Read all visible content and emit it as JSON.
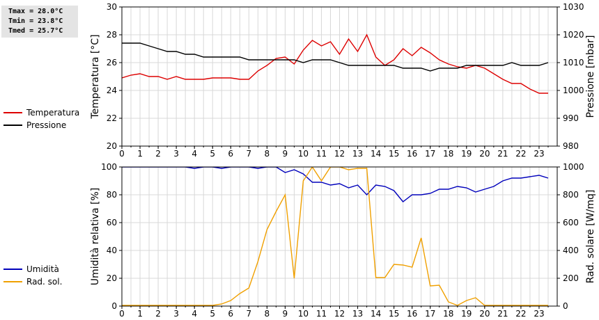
{
  "stats": {
    "tmax": "Tmax = 28.0°C",
    "tmin": "Tmin = 23.8°C",
    "tmed": "Tmed = 25.7°C"
  },
  "colors": {
    "temperatura": "#dd0000",
    "pressione": "#000000",
    "umidita": "#0000bb",
    "rad_sol": "#f0a000",
    "grid": "#d8d8d8"
  },
  "chart_data": [
    {
      "type": "line",
      "x_label": "",
      "x_ticks": [
        "0",
        "1",
        "2",
        "3",
        "4",
        "5",
        "6",
        "7",
        "8",
        "9",
        "10",
        "11",
        "12",
        "13",
        "14",
        "15",
        "16",
        "17",
        "18",
        "19",
        "20",
        "21",
        "22",
        "23"
      ],
      "y_left": {
        "label": "Temperatura [°C]",
        "range": [
          20,
          30
        ],
        "ticks": [
          "20",
          "22",
          "24",
          "26",
          "28",
          "30"
        ]
      },
      "y_right": {
        "label": "Pressione [mbar]",
        "range": [
          980,
          1030
        ],
        "ticks": [
          "980",
          "990",
          "1000",
          "1010",
          "1020",
          "1030"
        ]
      },
      "grid": true,
      "legend": [
        {
          "name": "Temperatura",
          "color": "#dd0000"
        },
        {
          "name": "Pressione",
          "color": "#000000"
        }
      ],
      "series": [
        {
          "name": "Temperatura",
          "axis": "left",
          "color": "#dd0000",
          "x": [
            0,
            0.5,
            1,
            1.5,
            2,
            2.5,
            3,
            3.5,
            4,
            4.5,
            5,
            5.5,
            6,
            6.5,
            7,
            7.5,
            8,
            8.5,
            9,
            9.5,
            10,
            10.5,
            11,
            11.5,
            12,
            12.5,
            13,
            13.5,
            14,
            14.5,
            15,
            15.5,
            16,
            16.5,
            17,
            17.5,
            18,
            18.5,
            19,
            19.5,
            20,
            20.5,
            21,
            21.5,
            22,
            22.5,
            23,
            23.5
          ],
          "values": [
            24.9,
            25.1,
            25.2,
            25.0,
            25.0,
            24.8,
            25.0,
            24.8,
            24.8,
            24.8,
            24.9,
            24.9,
            24.9,
            24.8,
            24.8,
            25.4,
            25.8,
            26.3,
            26.4,
            25.9,
            26.9,
            27.6,
            27.2,
            27.5,
            26.6,
            27.7,
            26.8,
            28.0,
            26.4,
            25.8,
            26.2,
            27.0,
            26.5,
            27.1,
            26.7,
            26.2,
            25.9,
            25.7,
            25.6,
            25.8,
            25.6,
            25.2,
            24.8,
            24.5,
            24.5,
            24.1,
            23.8,
            23.8
          ]
        },
        {
          "name": "Pressione",
          "axis": "right",
          "color": "#000000",
          "x": [
            0,
            1,
            1.5,
            2,
            2.5,
            3,
            3.5,
            4,
            4.5,
            5,
            5.5,
            6,
            6.5,
            7,
            7.5,
            8,
            8.5,
            9,
            9.5,
            10,
            10.5,
            11,
            11.5,
            12,
            12.5,
            13,
            13.5,
            14,
            14.5,
            15,
            15.5,
            16,
            16.5,
            17,
            17.5,
            18,
            18.5,
            19,
            19.5,
            20,
            20.5,
            21,
            21.5,
            22,
            22.5,
            23,
            23.5
          ],
          "values": [
            1017,
            1017,
            1016,
            1015,
            1014,
            1014,
            1013,
            1013,
            1012,
            1012,
            1012,
            1012,
            1012,
            1011,
            1011,
            1011,
            1011,
            1011,
            1011,
            1010,
            1011,
            1011,
            1011,
            1010,
            1009,
            1009,
            1009,
            1009,
            1009,
            1009,
            1008,
            1008,
            1008,
            1007,
            1008,
            1008,
            1008,
            1009,
            1009,
            1009,
            1009,
            1009,
            1010,
            1009,
            1009,
            1009,
            1010
          ]
        }
      ]
    },
    {
      "type": "line",
      "x_label": "",
      "x_ticks": [
        "0",
        "1",
        "2",
        "3",
        "4",
        "5",
        "6",
        "7",
        "8",
        "9",
        "10",
        "11",
        "12",
        "13",
        "14",
        "15",
        "16",
        "17",
        "18",
        "19",
        "20",
        "21",
        "22",
        "23"
      ],
      "y_left": {
        "label": "Umidità relativa [%]",
        "range": [
          0,
          100
        ],
        "ticks": [
          "0",
          "20",
          "40",
          "60",
          "80",
          "100"
        ]
      },
      "y_right": {
        "label": "Rad. solare [W/mq]",
        "range": [
          0,
          1000
        ],
        "ticks": [
          "0",
          "200",
          "400",
          "600",
          "800",
          "1000"
        ]
      },
      "grid": true,
      "legend": [
        {
          "name": "Umidità",
          "color": "#0000bb"
        },
        {
          "name": "Rad. sol.",
          "color": "#f0a000"
        }
      ],
      "series": [
        {
          "name": "Umidità",
          "axis": "left",
          "color": "#0000bb",
          "x": [
            0,
            0.5,
            1,
            1.5,
            2,
            2.5,
            3,
            3.5,
            4,
            4.5,
            5,
            5.5,
            6,
            6.5,
            7,
            7.5,
            8,
            8.5,
            9,
            9.5,
            10,
            10.5,
            11,
            11.5,
            12,
            12.5,
            13,
            13.5,
            14,
            14.5,
            15,
            15.5,
            16,
            16.5,
            17,
            17.5,
            18,
            18.5,
            19,
            19.5,
            20,
            20.5,
            21,
            21.5,
            22,
            22.5,
            23,
            23.5
          ],
          "values": [
            100,
            100,
            100,
            100,
            100,
            100,
            100,
            100,
            99,
            100,
            100,
            99,
            100,
            100,
            100,
            99,
            100,
            100,
            96,
            98,
            95,
            89,
            89,
            87,
            88,
            85,
            87,
            80,
            87,
            86,
            83,
            75,
            80,
            80,
            81,
            84,
            84,
            86,
            85,
            82,
            84,
            86,
            90,
            92,
            92,
            93,
            94,
            92
          ]
        },
        {
          "name": "Rad. sol.",
          "axis": "right",
          "color": "#f0a000",
          "x": [
            0,
            0.5,
            1,
            1.5,
            2,
            2.5,
            3,
            3.5,
            4,
            4.5,
            5,
            5.5,
            6,
            6.5,
            7,
            7.5,
            8,
            8.5,
            9,
            9.5,
            10,
            10.5,
            11,
            11.5,
            12,
            12.5,
            13,
            13.5,
            14,
            14.5,
            15,
            15.5,
            16,
            16.5,
            17,
            17.5,
            18,
            18.5,
            19,
            19.5,
            20,
            20.5,
            21,
            21.5,
            22,
            22.5,
            23,
            23.5
          ],
          "values": [
            5,
            5,
            5,
            5,
            5,
            5,
            5,
            5,
            5,
            5,
            5,
            15,
            40,
            90,
            130,
            320,
            550,
            680,
            800,
            200,
            900,
            1000,
            900,
            1000,
            1000,
            980,
            990,
            990,
            205,
            205,
            300,
            295,
            280,
            490,
            145,
            150,
            30,
            5,
            40,
            60,
            5,
            5,
            5,
            5,
            5,
            5,
            5,
            5
          ]
        }
      ]
    }
  ]
}
